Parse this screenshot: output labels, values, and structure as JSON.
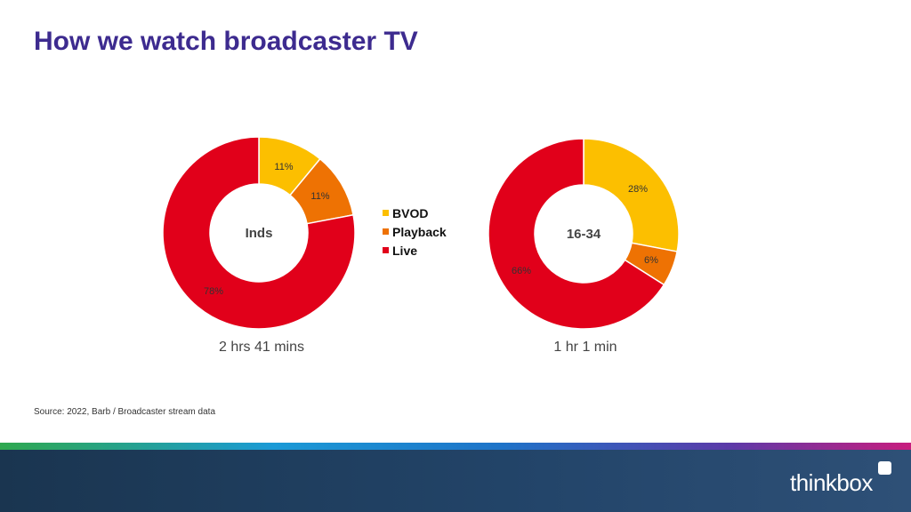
{
  "page": {
    "title": "How we watch broadcaster TV",
    "source": "Source: 2022, Barb / Broadcaster stream data",
    "brand": "thinkbox"
  },
  "colors": {
    "BVOD": "#fcbf00",
    "Playback": "#ee7203",
    "Live": "#e1001a",
    "title": "#3d2b8f"
  },
  "chart_data": [
    {
      "type": "pie",
      "center_label": "Inds",
      "caption": "2 hrs 41 mins",
      "categories": [
        "BVOD",
        "Playback",
        "Live"
      ],
      "values": [
        11,
        11,
        78
      ],
      "labels": [
        "11%",
        "11%",
        "78%"
      ]
    },
    {
      "type": "pie",
      "center_label": "16-34",
      "caption": "1 hr 1 min",
      "categories": [
        "BVOD",
        "Playback",
        "Live"
      ],
      "values": [
        28,
        6,
        66
      ],
      "labels": [
        "28%",
        "6%",
        "66%"
      ]
    }
  ],
  "legend": {
    "placement": "center",
    "items": [
      "BVOD",
      "Playback",
      "Live"
    ]
  }
}
